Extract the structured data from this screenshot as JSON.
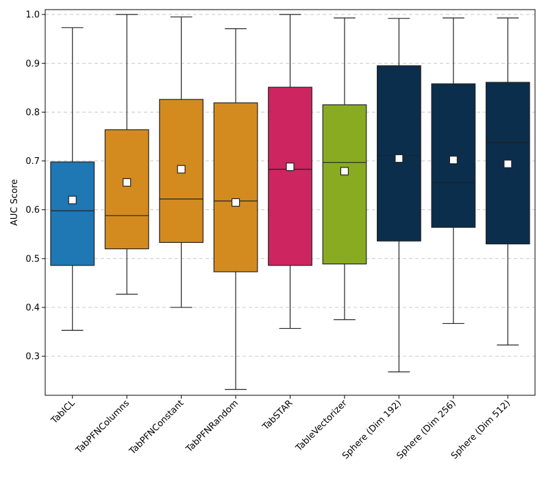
{
  "chart_data": {
    "type": "boxplot",
    "ylabel": "AUC Score",
    "xlabel": "",
    "ylim": [
      0.22,
      1.01
    ],
    "yticks": [
      0.3,
      0.4,
      0.5,
      0.6,
      0.7,
      0.8,
      0.9,
      1.0
    ],
    "ytick_labels": [
      "0.3",
      "0.4",
      "0.5",
      "0.6",
      "0.7",
      "0.8",
      "0.9",
      "1.0"
    ],
    "grid": "horizontal-dashed",
    "mean_marker": "white-square",
    "categories": [
      "TabICL",
      "TabPFNColumns",
      "TabPFNConstant",
      "TabPFNRandom",
      "TabSTAR",
      "TableVectorizer",
      "Sphere (Dim 192)",
      "Sphere (Dim 256)",
      "Sphere (Dim 512)"
    ],
    "boxes": [
      {
        "label": "TabICL",
        "whisker_low": 0.353,
        "q1": 0.486,
        "median": 0.598,
        "q3": 0.698,
        "whisker_high": 0.973,
        "mean": 0.62,
        "color": "#1f77b4"
      },
      {
        "label": "TabPFNColumns",
        "whisker_low": 0.427,
        "q1": 0.52,
        "median": 0.588,
        "q3": 0.764,
        "whisker_high": 1.0,
        "mean": 0.656,
        "color": "#d38b20"
      },
      {
        "label": "TabPFNConstant",
        "whisker_low": 0.4,
        "q1": 0.533,
        "median": 0.622,
        "q3": 0.826,
        "whisker_high": 0.995,
        "mean": 0.683,
        "color": "#d38b20"
      },
      {
        "label": "TabPFNRandom",
        "whisker_low": 0.232,
        "q1": 0.473,
        "median": 0.618,
        "q3": 0.819,
        "whisker_high": 0.971,
        "mean": 0.615,
        "color": "#d38b20"
      },
      {
        "label": "TabSTAR",
        "whisker_low": 0.357,
        "q1": 0.486,
        "median": 0.683,
        "q3": 0.851,
        "whisker_high": 1.0,
        "mean": 0.688,
        "color": "#cc2560"
      },
      {
        "label": "TableVectorizer",
        "whisker_low": 0.375,
        "q1": 0.489,
        "median": 0.697,
        "q3": 0.815,
        "whisker_high": 0.993,
        "mean": 0.679,
        "color": "#89ab22"
      },
      {
        "label": "Sphere (Dim 192)",
        "whisker_low": 0.268,
        "q1": 0.536,
        "median": 0.711,
        "q3": 0.895,
        "whisker_high": 0.992,
        "mean": 0.705,
        "color": "#0b2e4c"
      },
      {
        "label": "Sphere (Dim 256)",
        "whisker_low": 0.367,
        "q1": 0.564,
        "median": 0.656,
        "q3": 0.858,
        "whisker_high": 0.993,
        "mean": 0.702,
        "color": "#0b2e4c"
      },
      {
        "label": "Sphere (Dim 512)",
        "whisker_low": 0.323,
        "q1": 0.53,
        "median": 0.738,
        "q3": 0.861,
        "whisker_high": 0.993,
        "mean": 0.694,
        "color": "#0b2e4c"
      }
    ]
  }
}
